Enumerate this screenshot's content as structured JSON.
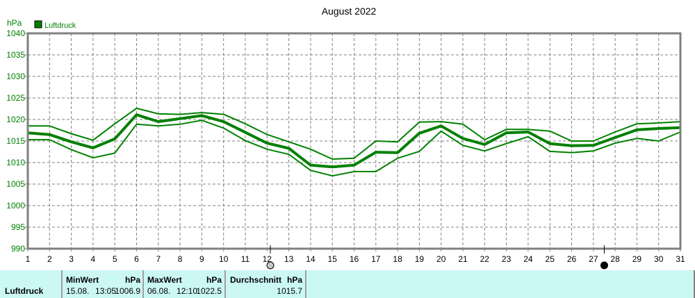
{
  "chart_data": {
    "type": "line",
    "title": "August 2022",
    "ylabel": "hPa",
    "xlabel": "",
    "ylim": [
      990,
      1040
    ],
    "xlim": [
      1,
      31
    ],
    "yticks": [
      990,
      995,
      1000,
      1005,
      1010,
      1015,
      1020,
      1025,
      1030,
      1035,
      1040
    ],
    "xticks": [
      1,
      2,
      3,
      4,
      5,
      6,
      7,
      8,
      9,
      10,
      11,
      12,
      13,
      14,
      15,
      16,
      17,
      18,
      19,
      20,
      21,
      22,
      23,
      24,
      25,
      26,
      27,
      28,
      29,
      30,
      31
    ],
    "grid": true,
    "legend": {
      "position": "top-left",
      "entries": [
        "Luftdruck"
      ]
    },
    "color": "#008000",
    "x": [
      1,
      2,
      3,
      4,
      5,
      6,
      7,
      8,
      9,
      10,
      11,
      12,
      13,
      14,
      15,
      16,
      17,
      18,
      19,
      20,
      21,
      22,
      23,
      24,
      25,
      26,
      27,
      28,
      29,
      30,
      31
    ],
    "series": [
      {
        "name": "Luftdruck Max",
        "values": [
          1018.5,
          1018.5,
          1016.7,
          1015.2,
          1019.0,
          1022.6,
          1021.3,
          1021.2,
          1021.6,
          1021.2,
          1019.0,
          1016.5,
          1014.8,
          1013.1,
          1010.8,
          1011.0,
          1015.0,
          1014.8,
          1019.4,
          1019.5,
          1018.9,
          1015.3,
          1017.7,
          1017.7,
          1017.3,
          1015.0,
          1015.0,
          1017.1,
          1019.0,
          1019.2,
          1019.5
        ]
      },
      {
        "name": "Luftdruck Mittel",
        "values": [
          1016.9,
          1016.5,
          1014.8,
          1013.4,
          1015.5,
          1021.1,
          1019.5,
          1020.2,
          1020.9,
          1019.5,
          1017.0,
          1014.5,
          1013.3,
          1009.4,
          1009.0,
          1009.4,
          1012.4,
          1012.3,
          1016.8,
          1018.5,
          1015.6,
          1014.2,
          1016.9,
          1017.1,
          1014.4,
          1013.9,
          1014.0,
          1015.8,
          1017.6,
          1017.9,
          1018.1
        ]
      },
      {
        "name": "Luftdruck Min",
        "values": [
          1015.3,
          1015.3,
          1013.0,
          1011.1,
          1012.2,
          1018.9,
          1018.5,
          1018.9,
          1019.8,
          1018.0,
          1015.1,
          1013.1,
          1011.9,
          1008.2,
          1006.9,
          1007.9,
          1007.9,
          1011.0,
          1012.6,
          1017.3,
          1014.0,
          1012.7,
          1014.4,
          1016.0,
          1012.6,
          1012.3,
          1012.7,
          1014.5,
          1015.6,
          1015.0,
          1017.1
        ]
      }
    ],
    "annotations": [
      {
        "type": "full-moon",
        "day": 12.15
      },
      {
        "type": "new-moon",
        "day": 27.5
      }
    ]
  },
  "header": {
    "title": "August 2022",
    "unit": "hPa",
    "legend_label": "Luftdruck"
  },
  "stats": {
    "row_label": "Luftdruck",
    "min": {
      "header": "MinWert",
      "unit": "hPa",
      "date": "15.08.",
      "time": "13:05",
      "value": "1006.9"
    },
    "max": {
      "header": "MaxWert",
      "unit": "hPa",
      "date": "06.08.",
      "time": "12:10",
      "value": "1022.5"
    },
    "avg": {
      "header": "Durchschnitt",
      "unit": "hPa",
      "value": "1015.7"
    }
  }
}
